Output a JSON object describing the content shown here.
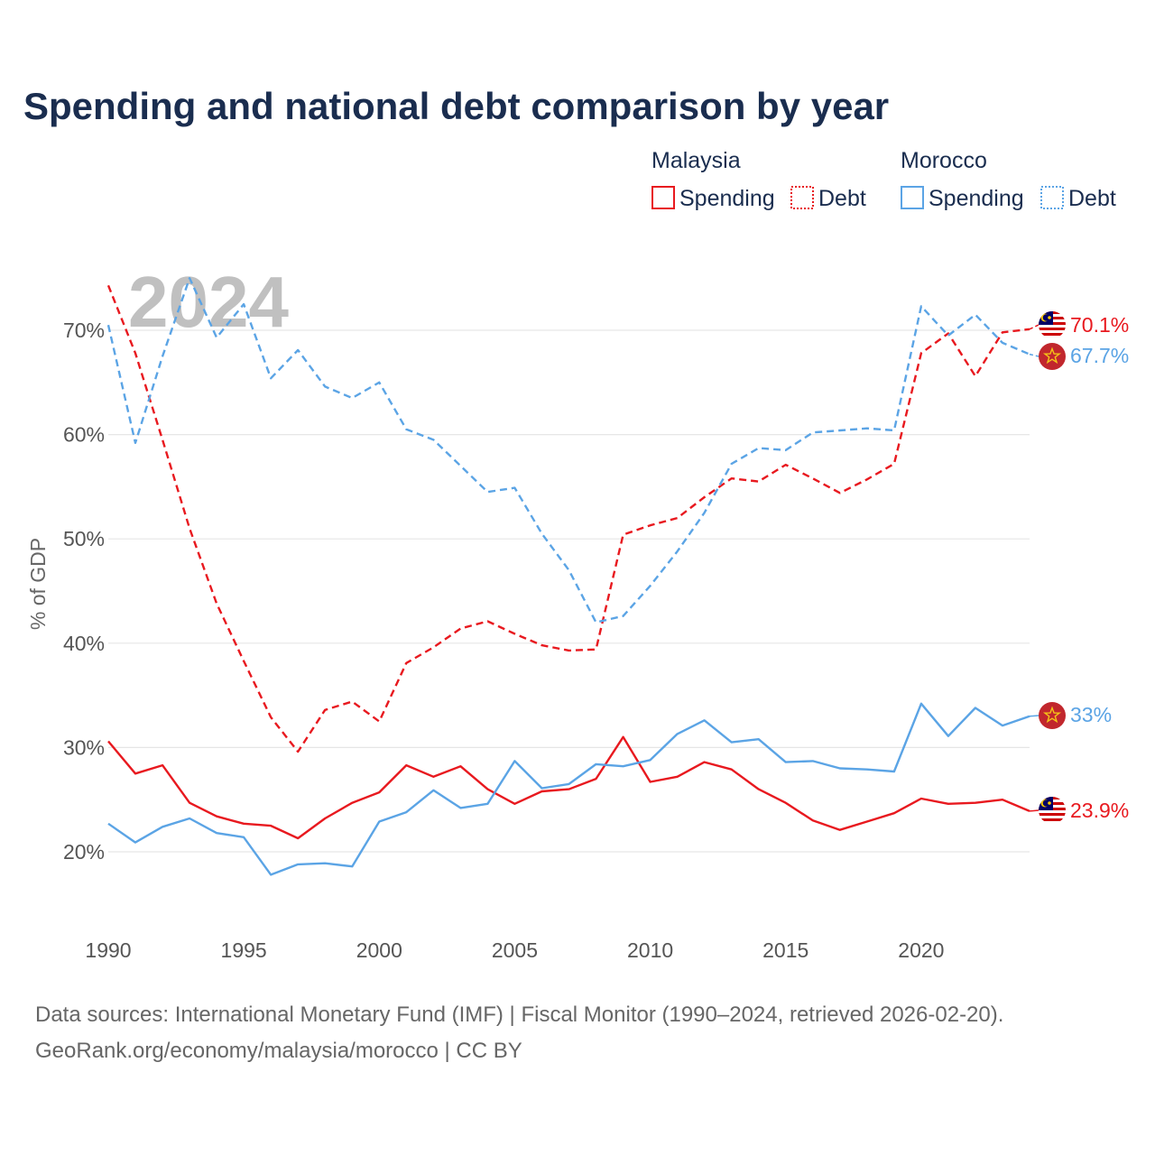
{
  "title": "Spending and national debt comparison by year",
  "watermark_year": "2024",
  "legend": {
    "groups": [
      {
        "name": "Malaysia",
        "color": "#e8191f",
        "items": [
          "Spending",
          "Debt"
        ]
      },
      {
        "name": "Morocco",
        "color": "#5ba4e5",
        "items": [
          "Spending",
          "Debt"
        ]
      }
    ]
  },
  "end_labels": {
    "malaysia_debt": "70.1%",
    "morocco_debt": "67.7%",
    "morocco_spending": "33%",
    "malaysia_spending": "23.9%"
  },
  "source": {
    "line1": "Data sources: International Monetary Fund (IMF) | Fiscal Monitor (1990–2024, retrieved 2026-02-20).",
    "line2": "GeoRank.org/economy/malaysia/morocco | CC BY"
  },
  "chart_data": {
    "type": "line",
    "title": "Spending and national debt comparison by year",
    "ylabel": "% of GDP",
    "xlabel": "",
    "x": [
      1990,
      1991,
      1992,
      1993,
      1994,
      1995,
      1996,
      1997,
      1998,
      1999,
      2000,
      2001,
      2002,
      2003,
      2004,
      2005,
      2006,
      2007,
      2008,
      2009,
      2010,
      2011,
      2012,
      2013,
      2014,
      2015,
      2016,
      2017,
      2018,
      2019,
      2020,
      2021,
      2022,
      2023,
      2024
    ],
    "xlim": [
      1990,
      2024
    ],
    "ylim": [
      14,
      76
    ],
    "xticks": [
      1990,
      1995,
      2000,
      2005,
      2010,
      2015,
      2020
    ],
    "yticks": [
      20,
      30,
      40,
      50,
      60,
      70
    ],
    "ytick_labels": [
      "20%",
      "30%",
      "40%",
      "50%",
      "60%",
      "70%"
    ],
    "series": [
      {
        "name": "Malaysia Spending",
        "color": "#e8191f",
        "dashed": false,
        "values": [
          30.6,
          27.5,
          28.3,
          24.7,
          23.4,
          22.7,
          22.5,
          21.3,
          23.2,
          24.7,
          25.7,
          28.3,
          27.2,
          28.2,
          26.0,
          24.6,
          25.8,
          26.0,
          27.0,
          31.0,
          26.7,
          27.2,
          28.6,
          27.9,
          26.0,
          24.7,
          23.0,
          22.1,
          22.9,
          23.7,
          25.1,
          24.6,
          24.7,
          25.0,
          23.9
        ]
      },
      {
        "name": "Malaysia Debt",
        "color": "#e8191f",
        "dashed": true,
        "values": [
          74.3,
          67.8,
          59.5,
          51.0,
          43.8,
          38.3,
          32.9,
          29.6,
          33.6,
          34.4,
          32.5,
          38.1,
          39.6,
          41.4,
          42.1,
          40.9,
          39.8,
          39.3,
          39.4,
          50.4,
          51.3,
          52.0,
          54.0,
          55.8,
          55.5,
          57.1,
          55.8,
          54.4,
          55.7,
          57.2,
          67.8,
          69.7,
          65.6,
          69.8,
          70.1
        ]
      },
      {
        "name": "Morocco Spending",
        "color": "#5ba4e5",
        "dashed": false,
        "values": [
          22.7,
          20.9,
          22.4,
          23.2,
          21.8,
          21.4,
          17.8,
          18.8,
          18.9,
          18.6,
          22.9,
          23.8,
          25.9,
          24.2,
          24.6,
          28.7,
          26.1,
          26.5,
          28.4,
          28.2,
          28.8,
          31.3,
          32.6,
          30.5,
          30.8,
          28.6,
          28.7,
          28.0,
          27.9,
          27.7,
          34.2,
          31.1,
          33.8,
          32.1,
          33.0
        ]
      },
      {
        "name": "Morocco Debt",
        "color": "#5ba4e5",
        "dashed": true,
        "values": [
          70.5,
          59.2,
          67.5,
          75.0,
          69.3,
          72.5,
          65.4,
          68.1,
          64.6,
          63.5,
          65.0,
          60.5,
          59.5,
          57.0,
          54.5,
          54.9,
          50.5,
          47.0,
          42.0,
          42.6,
          45.5,
          48.8,
          52.5,
          57.2,
          58.7,
          58.5,
          60.2,
          60.4,
          60.6,
          60.4,
          72.3,
          69.5,
          71.5,
          68.8,
          67.7
        ]
      }
    ]
  }
}
